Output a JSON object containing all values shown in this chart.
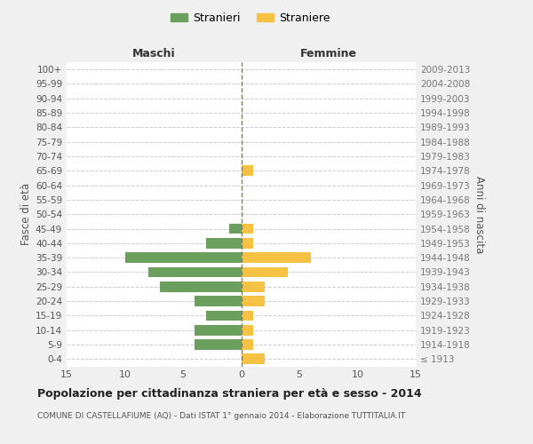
{
  "age_groups": [
    "100+",
    "95-99",
    "90-94",
    "85-89",
    "80-84",
    "75-79",
    "70-74",
    "65-69",
    "60-64",
    "55-59",
    "50-54",
    "45-49",
    "40-44",
    "35-39",
    "30-34",
    "25-29",
    "20-24",
    "15-19",
    "10-14",
    "5-9",
    "0-4"
  ],
  "birth_years": [
    "≤ 1913",
    "1914-1918",
    "1919-1923",
    "1924-1928",
    "1929-1933",
    "1934-1938",
    "1939-1943",
    "1944-1948",
    "1949-1953",
    "1954-1958",
    "1959-1963",
    "1964-1968",
    "1969-1973",
    "1974-1978",
    "1979-1983",
    "1984-1988",
    "1989-1993",
    "1994-1998",
    "1999-2003",
    "2004-2008",
    "2009-2013"
  ],
  "males": [
    0,
    0,
    0,
    0,
    0,
    0,
    0,
    0,
    0,
    0,
    0,
    1,
    3,
    10,
    8,
    7,
    4,
    3,
    4,
    4,
    0
  ],
  "females": [
    0,
    0,
    0,
    0,
    0,
    0,
    0,
    1,
    0,
    0,
    0,
    1,
    1,
    6,
    4,
    2,
    2,
    1,
    1,
    1,
    2
  ],
  "male_color": "#6a9f5e",
  "female_color": "#f5c244",
  "background_color": "#f0f0f0",
  "plot_bg_color": "#ffffff",
  "title": "Popolazione per cittadinanza straniera per età e sesso - 2014",
  "subtitle": "COMUNE DI CASTELLAFIUME (AQ) - Dati ISTAT 1° gennaio 2014 - Elaborazione TUTTITALIA.IT",
  "left_label": "Maschi",
  "right_label": "Femmine",
  "y_left_label": "Fasce di età",
  "y_right_label": "Anni di nascita",
  "legend_male": "Stranieri",
  "legend_female": "Straniere",
  "xlim": 15,
  "grid_color": "#cccccc",
  "centerline_color": "#808060"
}
